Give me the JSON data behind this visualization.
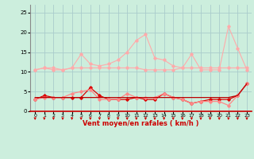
{
  "x": [
    0,
    1,
    2,
    3,
    4,
    5,
    6,
    7,
    8,
    9,
    10,
    11,
    12,
    13,
    14,
    15,
    16,
    17,
    18,
    19,
    20,
    21,
    22,
    23
  ],
  "line_rafales": [
    10.5,
    11,
    10.5,
    10.5,
    11,
    14.5,
    12,
    11.5,
    12,
    13,
    15,
    18,
    19.5,
    13.5,
    13,
    11.5,
    11,
    14.5,
    10.5,
    10.5,
    10.5,
    21.5,
    16,
    10.5
  ],
  "line_moy_avg": [
    10.5,
    11,
    11,
    10.5,
    11,
    11,
    11,
    11,
    11,
    11,
    11,
    11,
    10.5,
    10.5,
    10.5,
    10.5,
    11,
    11,
    11,
    11,
    11,
    11,
    11,
    11
  ],
  "line_moy": [
    3,
    3.5,
    3.5,
    3.5,
    4.5,
    5,
    5.5,
    3,
    3,
    3,
    4.5,
    3.5,
    3.5,
    3.5,
    4.5,
    3.5,
    3,
    2,
    2.5,
    2.5,
    2.5,
    1.5,
    4,
    7
  ],
  "line_moy2": [
    3,
    4,
    3.5,
    3.5,
    3.5,
    3.5,
    6,
    4,
    3,
    3,
    3,
    3.5,
    3,
    3,
    4.5,
    3.5,
    3,
    2,
    2.5,
    3,
    3,
    3,
    4,
    7
  ],
  "line_base": [
    3.5,
    3.5,
    3.5,
    3.5,
    3.5,
    3.5,
    3.5,
    3.5,
    3.5,
    3.5,
    3.5,
    3.5,
    3.5,
    3.5,
    3.5,
    3.5,
    3.5,
    3.5,
    3.5,
    3.5,
    3.5,
    3.5,
    4,
    7
  ],
  "background": "#cceedd",
  "grid_color": "#aacccc",
  "color_light_pink": "#ffaaaa",
  "color_pink": "#ff8888",
  "color_red": "#dd0000",
  "color_dark_red": "#bb0000",
  "xlabel": "Vent moyen/en rafales ( km/h )",
  "ylim": [
    0,
    27
  ],
  "xlim": [
    -0.5,
    23.5
  ],
  "yticks": [
    0,
    5,
    10,
    15,
    20,
    25
  ],
  "xticks": [
    0,
    1,
    2,
    3,
    4,
    5,
    6,
    7,
    8,
    9,
    10,
    11,
    12,
    13,
    14,
    15,
    16,
    17,
    18,
    19,
    20,
    21,
    22,
    23
  ]
}
